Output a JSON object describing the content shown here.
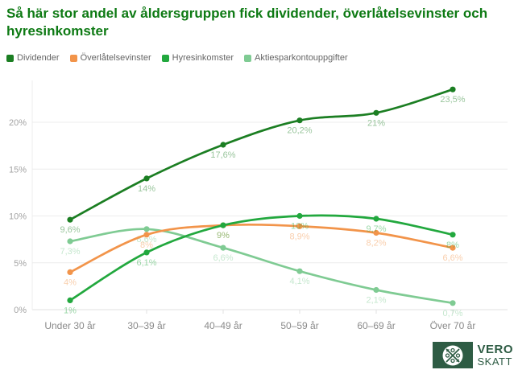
{
  "title": {
    "text": "Så här stor andel av åldersgruppen fick dividender, överlåtelsevinster och hyresinkomster",
    "color": "#0e7a14"
  },
  "chart_data": {
    "type": "line",
    "categories": [
      "Under 30 år",
      "30–39 år",
      "40–49 år",
      "50–59 år",
      "60–69 år",
      "Över 70 år"
    ],
    "series": [
      {
        "name": "Dividender",
        "color": "#1b7e22",
        "values": [
          9.6,
          14,
          17.6,
          20.2,
          21,
          23.5
        ],
        "labels": [
          "9,6%",
          "14%",
          "17,6%",
          "20,2%",
          "21%",
          "23,5%"
        ]
      },
      {
        "name": "Överlåtelsevinster",
        "color": "#f2944a",
        "values": [
          4,
          8,
          9,
          8.9,
          8.2,
          6.6
        ],
        "labels": [
          "4%",
          "8%",
          "9%",
          "8,9%",
          "8,2%",
          "6,6%"
        ]
      },
      {
        "name": "Hyresinkomster",
        "color": "#22a83e",
        "values": [
          1,
          6.1,
          9,
          10,
          9.7,
          8
        ],
        "labels": [
          "1%",
          "6,1%",
          "9%",
          "10%",
          "9,7%",
          "8%"
        ]
      },
      {
        "name": "Aktiesparkontouppgifter",
        "color": "#7fcb93",
        "values": [
          7.3,
          8.6,
          6.6,
          4.1,
          2.1,
          0.7
        ],
        "labels": [
          "7,3%",
          "8,6%",
          "6,6%",
          "4,1%",
          "2,1%",
          "0,7%"
        ]
      }
    ],
    "y_ticks": {
      "labels": [
        "0%",
        "5%",
        "10%",
        "15%",
        "20%"
      ],
      "values": [
        0,
        5,
        10,
        15,
        20
      ]
    },
    "ylim": [
      0,
      24.5
    ],
    "grid": true,
    "legend_position": "top",
    "colors": {
      "grid": "#ececec",
      "axis_line": "#e0e0e0",
      "y_tick_text": "#a3a3a3",
      "x_tick_text": "#8a8a8a"
    }
  },
  "logo": {
    "line1": "VERO",
    "line2": "SKATT",
    "color": "#2e5c44"
  }
}
